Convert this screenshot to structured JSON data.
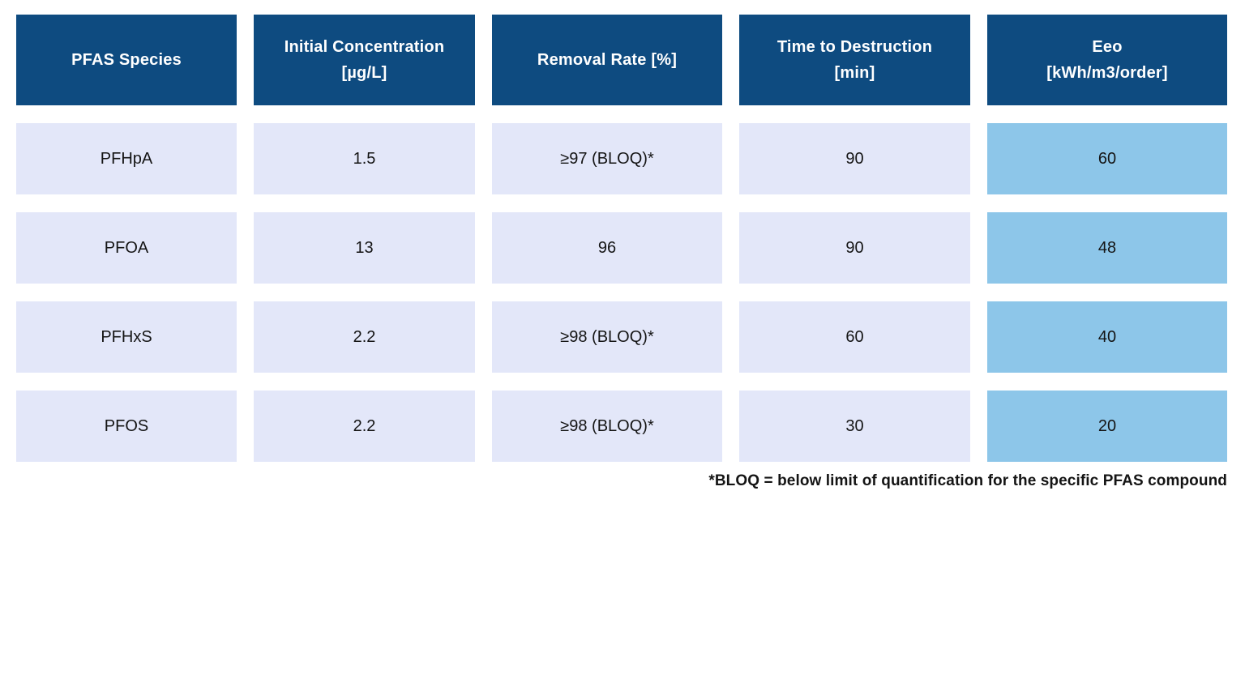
{
  "chart_data": {
    "type": "table",
    "columns": [
      "PFAS Species",
      "Initial Concentration [µg/L]",
      "Removal Rate [%]",
      "Time to Destruction [min]",
      "Eeo [kWh/m3/order]"
    ],
    "rows": [
      [
        "PFHpA",
        "1.5",
        "≥97 (BLOQ)*",
        "90",
        "60"
      ],
      [
        "PFOA",
        "13",
        "96",
        "90",
        "48"
      ],
      [
        "PFHxS",
        "2.2",
        "≥98 (BLOQ)*",
        "60",
        "40"
      ],
      [
        "PFOS",
        "2.2",
        "≥98 (BLOQ)*",
        "30",
        "20"
      ]
    ],
    "highlighted_column": "Eeo [kWh/m3/order]",
    "footnote": "*BLOQ = below limit of quantification for the specific PFAS compound"
  },
  "header": {
    "cells": [
      {
        "line1": "PFAS Species",
        "line2": ""
      },
      {
        "line1": "Initial Concentration",
        "line2": "[µg/L]"
      },
      {
        "line1": "Removal Rate [%]",
        "line2": ""
      },
      {
        "line1": "Time to Destruction",
        "line2": "[min]"
      },
      {
        "line1": "Eeo",
        "line2": "[kWh/m3/order]"
      }
    ]
  },
  "colors": {
    "header_bg": "#0e4b80",
    "header_text": "#ffffff",
    "cell_bg": "#e3e7f9",
    "eeo_bg": "#8dc6e9",
    "cell_text": "#141414"
  }
}
